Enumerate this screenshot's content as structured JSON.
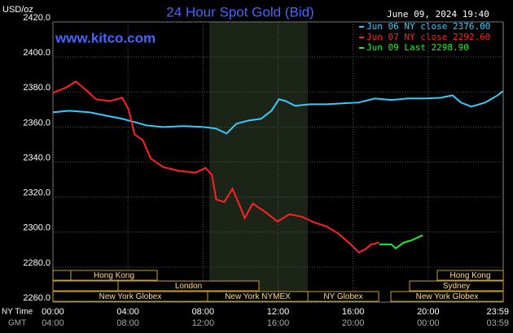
{
  "chart_data": {
    "type": "line",
    "title": "24 Hour Spot Gold (Bid)",
    "y_label": "USD/oz",
    "timestamp": "June 09, 2024 19:40",
    "source": "www.kitco.com",
    "x_row_labels": [
      "NY Time",
      "GMT"
    ],
    "sessions": [
      "Hong Kong",
      "London",
      "New York Globex",
      "New York NYMEX",
      "NY Globex",
      "Hong Kong",
      "Sydney",
      "New York Globex"
    ],
    "xlim": [
      0,
      24
    ],
    "xticks": [
      {
        "value": 0,
        "label": "00:00"
      },
      {
        "value": 4,
        "label": "04:00"
      },
      {
        "value": 8,
        "label": "08:00"
      },
      {
        "value": 12,
        "label": "12:00"
      },
      {
        "value": 16,
        "label": "16:00"
      },
      {
        "value": 20,
        "label": "20:00"
      },
      {
        "value": 23.98,
        "label": "23:59"
      }
    ],
    "gmt_ticks": [
      {
        "value": 0,
        "label": "04:00"
      },
      {
        "value": 4,
        "label": "08:00"
      },
      {
        "value": 8,
        "label": "12:00"
      },
      {
        "value": 12,
        "label": "16:00"
      },
      {
        "value": 16,
        "label": "20:00"
      },
      {
        "value": 20,
        "label": "00:00"
      },
      {
        "value": 23.98,
        "label": "03:59"
      }
    ],
    "ylim": [
      2260,
      2420
    ],
    "yticks": [
      {
        "value": 2260,
        "label": "2260.0"
      },
      {
        "value": 2280,
        "label": "2280.0"
      },
      {
        "value": 2300,
        "label": "2300.0"
      },
      {
        "value": 2320,
        "label": "2320.0"
      },
      {
        "value": 2340,
        "label": "2340.0"
      },
      {
        "value": 2360,
        "label": "2360.0"
      },
      {
        "value": 2380,
        "label": "2380.0"
      },
      {
        "value": 2400,
        "label": "2400.0"
      },
      {
        "value": 2420,
        "label": "2420.0"
      }
    ],
    "grid": true,
    "series": [
      {
        "name": "Jun 06 NY close 2376.00",
        "color": "#33ccff",
        "x": [
          0,
          0.87,
          1.96,
          2.83,
          3.7,
          4.35,
          5.0,
          5.87,
          6.96,
          8.04,
          8.7,
          9.26,
          9.78,
          10.43,
          11.09,
          11.65,
          12.04,
          12.39,
          12.91,
          13.7,
          14.57,
          15.43,
          16.3,
          17.17,
          18.04,
          18.91,
          19.78,
          20.65,
          21.3,
          21.74,
          22.3,
          23.04,
          23.7,
          23.98
        ],
        "values": [
          2368.4,
          2369.3,
          2368.4,
          2366.5,
          2364.7,
          2362.8,
          2360.9,
          2360,
          2360.5,
          2360,
          2359.1,
          2356.3,
          2361.9,
          2363.7,
          2364.7,
          2369.3,
          2375.8,
          2374.9,
          2372.1,
          2373,
          2373,
          2373.5,
          2374,
          2376.3,
          2375.4,
          2376.3,
          2376.3,
          2376.7,
          2378.1,
          2374,
          2371.6,
          2374,
          2378.1,
          2380.5
        ]
      },
      {
        "name": "Jun 07 NY close 2292.60",
        "color": "#ff2222",
        "x": [
          0,
          0.65,
          1.22,
          1.74,
          2.3,
          3.04,
          3.7,
          4.04,
          4.35,
          4.78,
          5.22,
          5.87,
          6.74,
          7.61,
          8.13,
          8.48,
          8.7,
          9.13,
          9.57,
          10.0,
          10.22,
          10.65,
          11.3,
          11.96,
          12.61,
          13.26,
          13.91,
          14.57,
          15.22,
          15.87,
          16.3,
          16.65,
          16.96,
          17.39
        ],
        "values": [
          2379.5,
          2382.3,
          2386,
          2381.4,
          2375.8,
          2374.9,
          2376.7,
          2369.8,
          2355.8,
          2352.6,
          2341.9,
          2337.2,
          2334.9,
          2334,
          2336.7,
          2332.6,
          2318.6,
          2317.2,
          2324.7,
          2314,
          2308,
          2316.3,
          2311.6,
          2306,
          2310.2,
          2308.8,
          2305.6,
          2303.3,
          2299.1,
          2293,
          2288.4,
          2290.2,
          2293,
          2294
        ]
      },
      {
        "name": "Jun 09 Last 2298.90",
        "color": "#22ee22",
        "x": [
          17.39,
          18.04,
          18.26,
          18.7,
          19.13,
          19.7
        ],
        "values": [
          2293,
          2293,
          2290.7,
          2294,
          2295.4,
          2298.2
        ]
      }
    ]
  }
}
